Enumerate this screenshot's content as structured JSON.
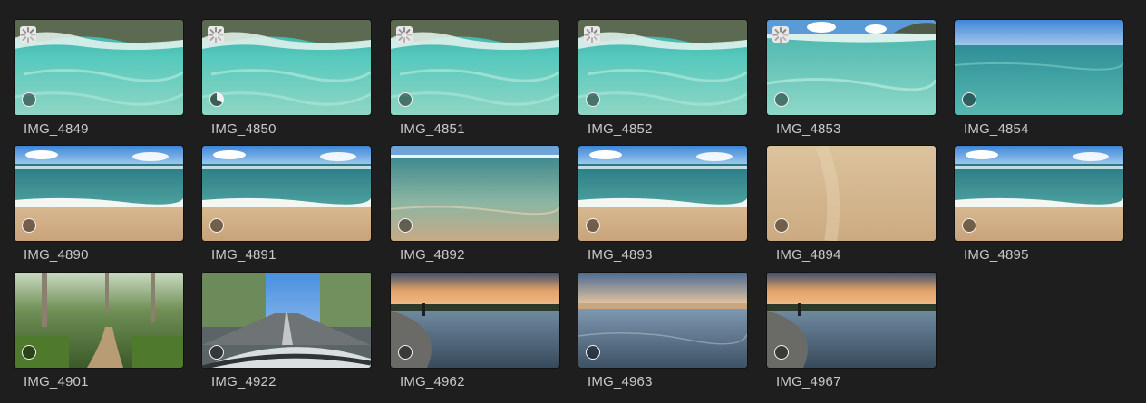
{
  "photos": [
    {
      "label": "IMG_4849",
      "scene": "underwater-wave",
      "sync": true,
      "status": "empty"
    },
    {
      "label": "IMG_4850",
      "scene": "underwater-wave",
      "sync": true,
      "status": "partial"
    },
    {
      "label": "IMG_4851",
      "scene": "underwater-wave",
      "sync": true,
      "status": "empty"
    },
    {
      "label": "IMG_4852",
      "scene": "underwater-wave",
      "sync": true,
      "status": "empty"
    },
    {
      "label": "IMG_4853",
      "scene": "underwater-sky",
      "sync": true,
      "status": "empty"
    },
    {
      "label": "IMG_4854",
      "scene": "open-sea",
      "sync": false,
      "status": "empty"
    },
    {
      "label": "IMG_4890",
      "scene": "beach",
      "sync": false,
      "status": "empty"
    },
    {
      "label": "IMG_4891",
      "scene": "beach",
      "sync": false,
      "status": "empty"
    },
    {
      "label": "IMG_4892",
      "scene": "shallows",
      "sync": false,
      "status": "empty"
    },
    {
      "label": "IMG_4893",
      "scene": "beach",
      "sync": false,
      "status": "empty"
    },
    {
      "label": "IMG_4894",
      "scene": "sand",
      "sync": false,
      "status": "empty"
    },
    {
      "label": "IMG_4895",
      "scene": "beach",
      "sync": false,
      "status": "empty"
    },
    {
      "label": "IMG_4901",
      "scene": "forest-path",
      "sync": false,
      "status": "empty"
    },
    {
      "label": "IMG_4922",
      "scene": "road",
      "sync": false,
      "status": "empty"
    },
    {
      "label": "IMG_4962",
      "scene": "sunset",
      "sync": false,
      "status": "empty"
    },
    {
      "label": "IMG_4963",
      "scene": "dusk-water",
      "sync": false,
      "status": "empty"
    },
    {
      "label": "IMG_4967",
      "scene": "sunset",
      "sync": false,
      "status": "empty"
    }
  ],
  "icons": {
    "sync": "sync-spinner-icon",
    "status_empty": "status-circle-icon",
    "status_partial": "status-pie-icon"
  }
}
